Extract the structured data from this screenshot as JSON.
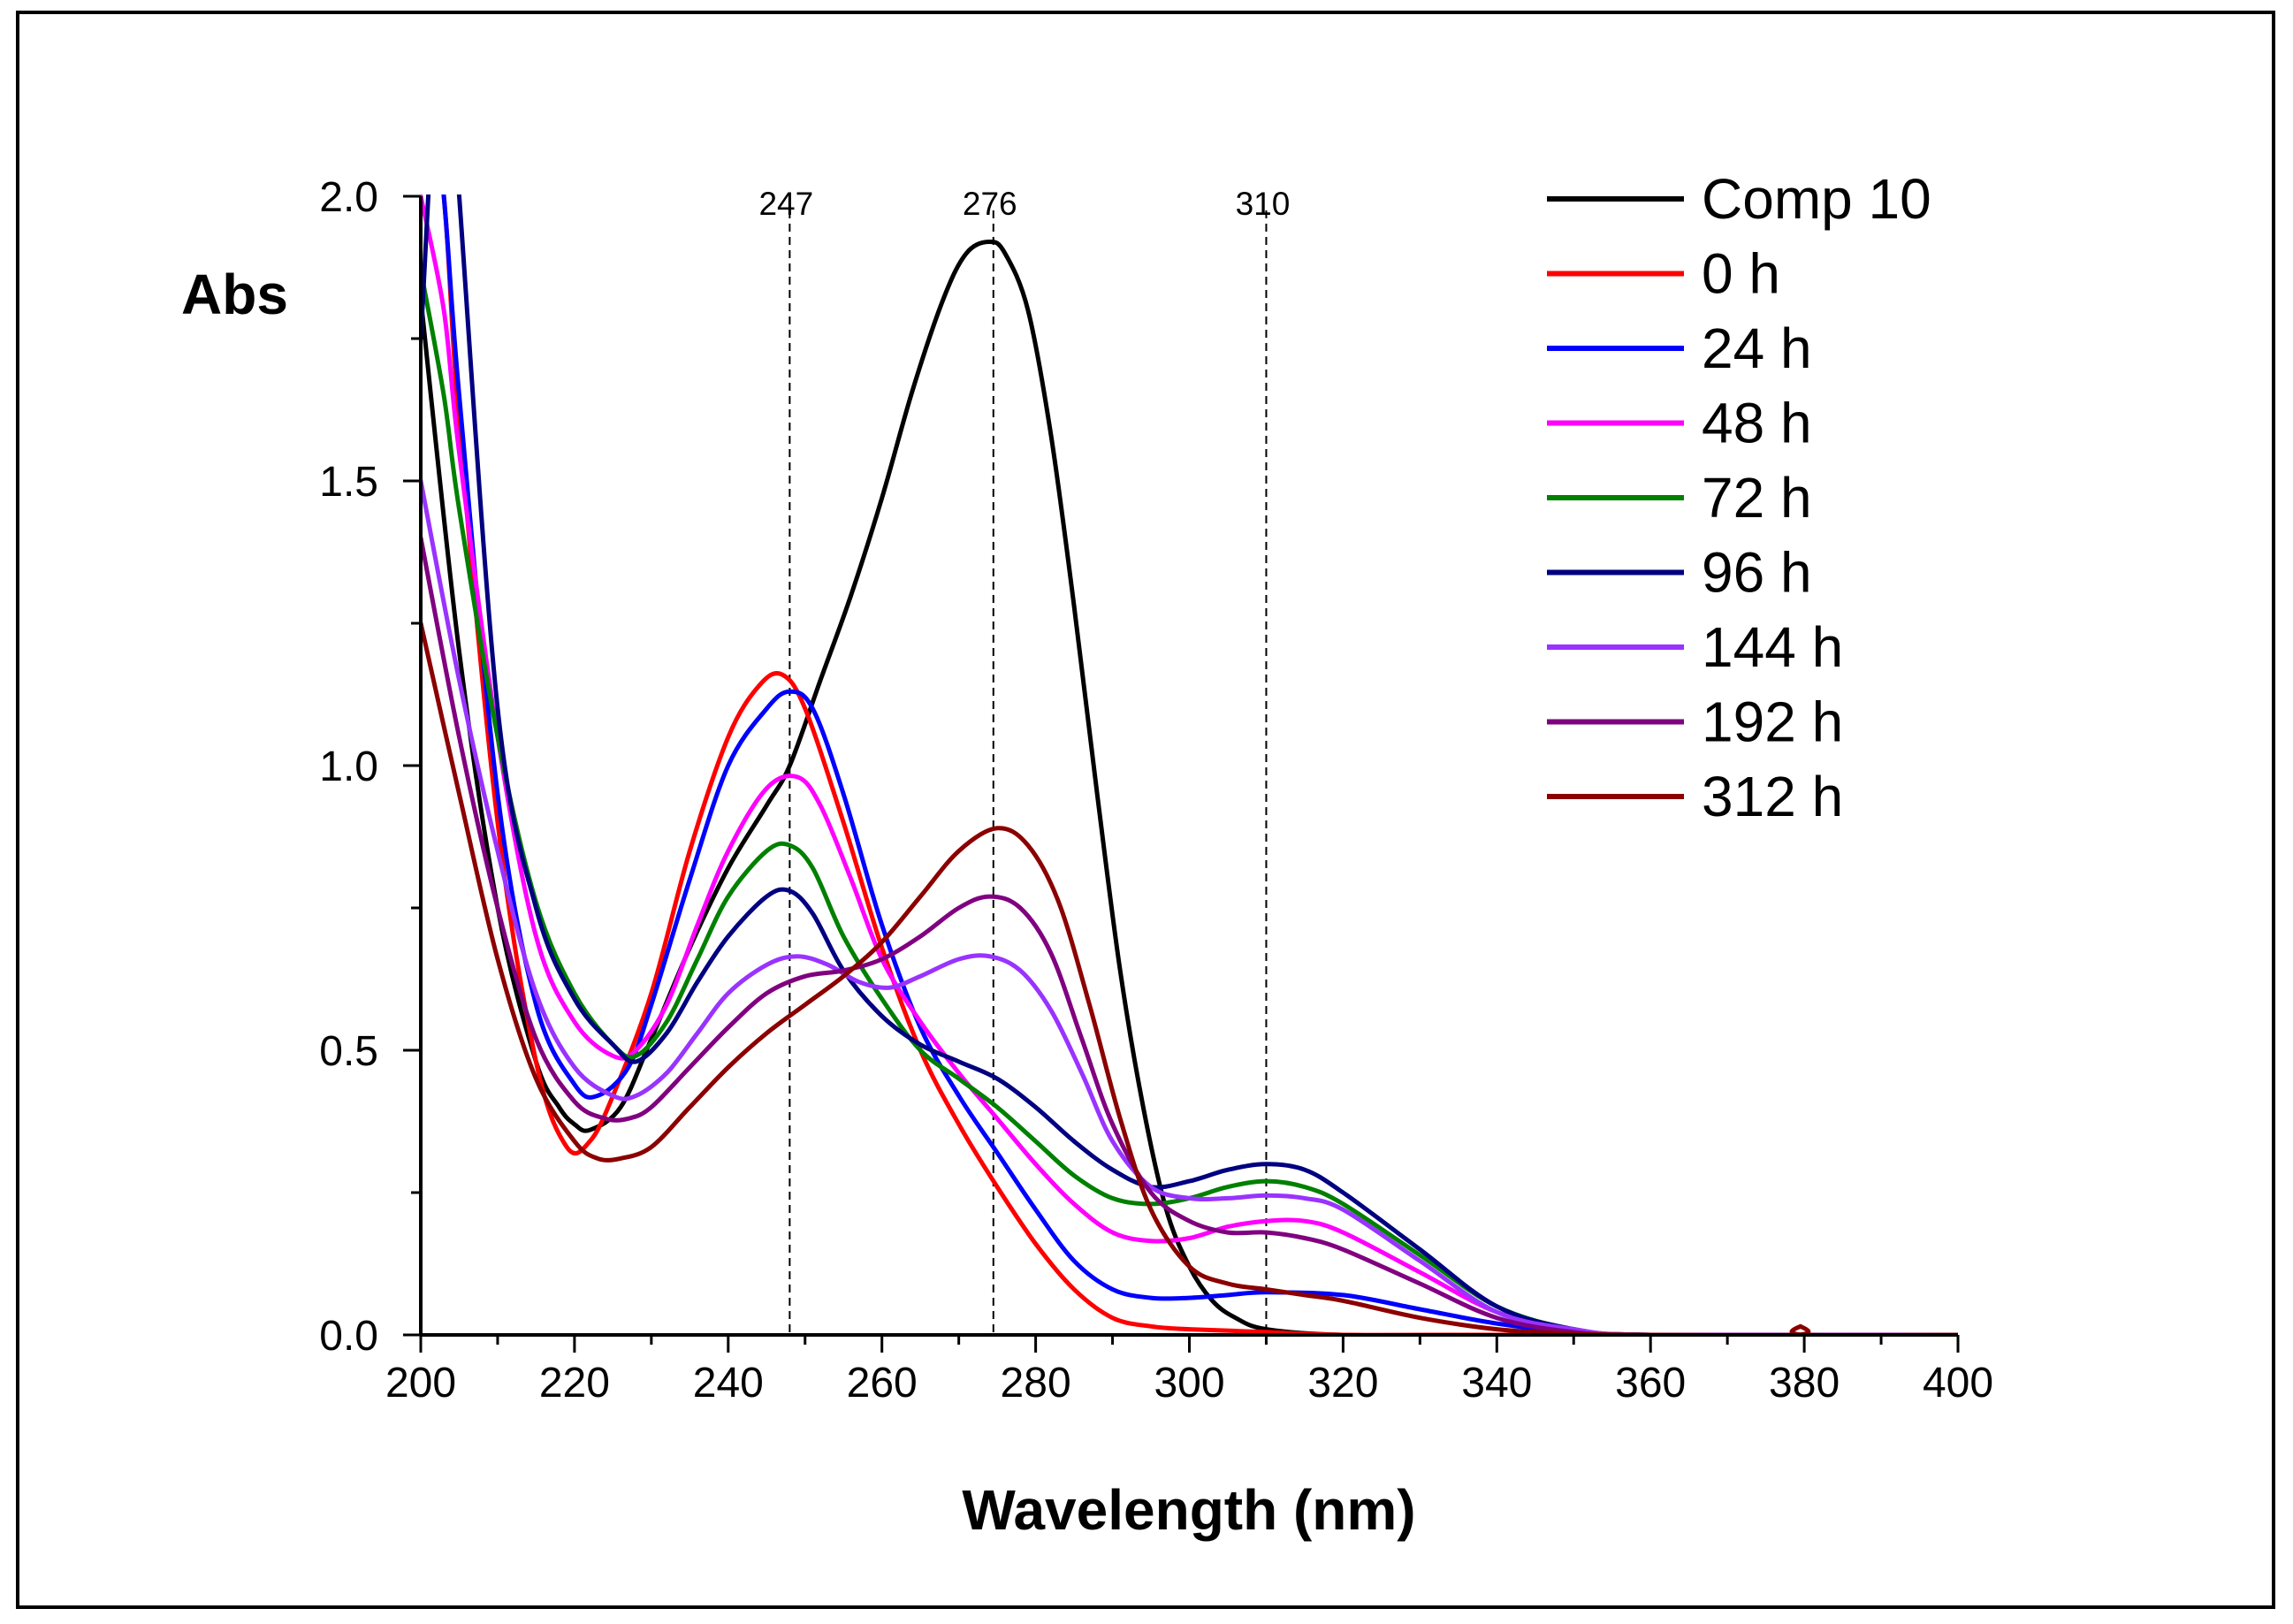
{
  "chart_data": {
    "type": "line",
    "title": "",
    "xlabel": "Wavelength (nm)",
    "ylabel": "Abs",
    "xlim": [
      200,
      400
    ],
    "ylim": [
      0,
      2.0
    ],
    "xticks": [
      "200",
      "220",
      "240",
      "260",
      "280",
      "300",
      "320",
      "340",
      "360",
      "380",
      "400"
    ],
    "yticks": [
      "0.0",
      "0.5",
      "1.0",
      "1.5",
      "2.0"
    ],
    "grid": false,
    "legend_position": "top-right",
    "reference_lines": [
      {
        "label": "247",
        "x": 248
      },
      {
        "label": "276",
        "x": 274.5
      },
      {
        "label": "310",
        "x": 310
      }
    ],
    "series": [
      {
        "name": "Comp 10",
        "color": "#000000",
        "x": [
          200,
          205,
          210,
          215,
          218,
          220,
          222,
          226,
          230,
          235,
          240,
          245,
          248,
          252,
          256,
          260,
          264,
          268,
          271,
          274,
          276,
          279,
          282,
          285,
          288,
          291,
          294,
          297,
          300,
          303,
          306,
          310,
          320,
          340,
          400
        ],
        "y": [
          1.82,
          1.2,
          0.75,
          0.48,
          0.4,
          0.37,
          0.36,
          0.4,
          0.52,
          0.68,
          0.82,
          0.93,
          1.0,
          1.15,
          1.3,
          1.47,
          1.66,
          1.82,
          1.9,
          1.92,
          1.9,
          1.8,
          1.58,
          1.28,
          0.95,
          0.64,
          0.4,
          0.22,
          0.12,
          0.06,
          0.03,
          0.01,
          0.0,
          0.0,
          0.0
        ]
      },
      {
        "name": "0 h",
        "color": "#ff0000",
        "x": [
          200,
          203,
          205,
          210,
          215,
          219,
          222,
          225,
          230,
          235,
          240,
          244,
          247,
          250,
          255,
          260,
          265,
          270,
          275,
          280,
          285,
          290,
          295,
          300,
          310,
          320,
          340,
          400
        ],
        "y": [
          2.3,
          2.0,
          1.6,
          0.9,
          0.48,
          0.33,
          0.34,
          0.42,
          0.6,
          0.85,
          1.05,
          1.14,
          1.16,
          1.1,
          0.9,
          0.68,
          0.5,
          0.37,
          0.26,
          0.16,
          0.08,
          0.03,
          0.015,
          0.01,
          0.005,
          0.0,
          0.0,
          0.0
        ]
      },
      {
        "name": "24 h",
        "color": "#0000ff",
        "x": [
          200,
          203,
          205,
          210,
          215,
          220,
          223,
          227,
          230,
          235,
          240,
          245,
          248,
          251,
          255,
          260,
          265,
          270,
          275,
          280,
          285,
          290,
          295,
          300,
          305,
          310,
          320,
          330,
          340,
          350,
          360,
          400
        ],
        "y": [
          2.4,
          2.0,
          1.65,
          0.95,
          0.58,
          0.44,
          0.42,
          0.47,
          0.58,
          0.8,
          1.0,
          1.1,
          1.13,
          1.1,
          0.95,
          0.72,
          0.54,
          0.42,
          0.32,
          0.22,
          0.13,
          0.08,
          0.065,
          0.065,
          0.07,
          0.075,
          0.07,
          0.045,
          0.02,
          0.005,
          0.0,
          0.0
        ]
      },
      {
        "name": "48 h",
        "color": "#ff00ff",
        "x": [
          200,
          203,
          205,
          210,
          215,
          220,
          225,
          228,
          232,
          236,
          240,
          245,
          249,
          252,
          256,
          260,
          265,
          270,
          275,
          280,
          285,
          290,
          295,
          300,
          305,
          310,
          315,
          320,
          330,
          340,
          350,
          360,
          400
        ],
        "y": [
          2.0,
          1.8,
          1.55,
          1.05,
          0.7,
          0.55,
          0.49,
          0.5,
          0.58,
          0.72,
          0.85,
          0.96,
          0.98,
          0.93,
          0.8,
          0.66,
          0.55,
          0.46,
          0.38,
          0.3,
          0.23,
          0.18,
          0.165,
          0.17,
          0.19,
          0.2,
          0.2,
          0.18,
          0.11,
          0.04,
          0.01,
          0.0,
          0.0
        ]
      },
      {
        "name": "72 h",
        "color": "#008000",
        "x": [
          200,
          203,
          205,
          210,
          215,
          220,
          225,
          228,
          232,
          236,
          240,
          245,
          248,
          251,
          255,
          260,
          265,
          270,
          275,
          280,
          285,
          290,
          295,
          300,
          305,
          310,
          315,
          320,
          330,
          340,
          350,
          360,
          400
        ],
        "y": [
          1.87,
          1.65,
          1.45,
          1.05,
          0.76,
          0.6,
          0.51,
          0.49,
          0.55,
          0.66,
          0.77,
          0.85,
          0.86,
          0.82,
          0.7,
          0.59,
          0.5,
          0.45,
          0.4,
          0.34,
          0.28,
          0.24,
          0.23,
          0.24,
          0.26,
          0.27,
          0.26,
          0.23,
          0.14,
          0.05,
          0.01,
          0.0,
          0.0
        ]
      },
      {
        "name": "96 h",
        "color": "#000080",
        "x": [
          200,
          203,
          205,
          210,
          215,
          220,
          225,
          228,
          232,
          236,
          240,
          245,
          248,
          251,
          255,
          260,
          265,
          270,
          275,
          280,
          285,
          290,
          295,
          300,
          305,
          310,
          315,
          320,
          330,
          340,
          350,
          360,
          400
        ],
        "y": [
          1.75,
          2.4,
          2.0,
          1.1,
          0.75,
          0.59,
          0.51,
          0.48,
          0.53,
          0.62,
          0.7,
          0.77,
          0.78,
          0.74,
          0.64,
          0.56,
          0.51,
          0.48,
          0.45,
          0.4,
          0.34,
          0.29,
          0.26,
          0.27,
          0.29,
          0.3,
          0.29,
          0.25,
          0.15,
          0.05,
          0.01,
          0.0,
          0.0
        ]
      },
      {
        "name": "144 h",
        "color": "#9933ff",
        "x": [
          200,
          205,
          210,
          215,
          220,
          225,
          228,
          232,
          236,
          240,
          245,
          249,
          253,
          257,
          261,
          265,
          270,
          274,
          278,
          282,
          286,
          290,
          295,
          300,
          305,
          310,
          315,
          320,
          330,
          340,
          350,
          360,
          400
        ],
        "y": [
          1.5,
          1.15,
          0.85,
          0.6,
          0.47,
          0.42,
          0.42,
          0.46,
          0.53,
          0.6,
          0.65,
          0.665,
          0.65,
          0.62,
          0.61,
          0.63,
          0.66,
          0.665,
          0.64,
          0.57,
          0.46,
          0.34,
          0.26,
          0.24,
          0.24,
          0.245,
          0.24,
          0.22,
          0.13,
          0.04,
          0.01,
          0.0,
          0.0
        ]
      },
      {
        "name": "192 h",
        "color": "#800080",
        "x": [
          200,
          205,
          210,
          215,
          220,
          224,
          227,
          230,
          235,
          240,
          245,
          250,
          255,
          260,
          265,
          270,
          274,
          278,
          282,
          286,
          290,
          295,
          300,
          305,
          310,
          315,
          320,
          330,
          340,
          350,
          360,
          400
        ],
        "y": [
          1.4,
          1.05,
          0.75,
          0.52,
          0.41,
          0.38,
          0.38,
          0.4,
          0.47,
          0.54,
          0.6,
          0.63,
          0.64,
          0.66,
          0.7,
          0.75,
          0.77,
          0.75,
          0.67,
          0.52,
          0.37,
          0.25,
          0.2,
          0.18,
          0.18,
          0.17,
          0.15,
          0.09,
          0.03,
          0.005,
          0.0,
          0.0
        ]
      },
      {
        "name": "312 h",
        "color": "#8b0000",
        "x": [
          200,
          205,
          210,
          215,
          220,
          223,
          226,
          230,
          235,
          240,
          245,
          250,
          255,
          260,
          265,
          270,
          275,
          279,
          283,
          287,
          291,
          295,
          300,
          305,
          310,
          315,
          320,
          330,
          340,
          350,
          360,
          379,
          379.5,
          380,
          400
        ],
        "y": [
          1.25,
          0.95,
          0.66,
          0.45,
          0.34,
          0.31,
          0.31,
          0.33,
          0.4,
          0.47,
          0.53,
          0.58,
          0.63,
          0.69,
          0.77,
          0.85,
          0.89,
          0.86,
          0.76,
          0.58,
          0.38,
          0.22,
          0.12,
          0.09,
          0.08,
          0.07,
          0.06,
          0.03,
          0.01,
          0.002,
          0.0,
          0.0,
          0.015,
          0.0,
          0.0
        ]
      }
    ]
  }
}
